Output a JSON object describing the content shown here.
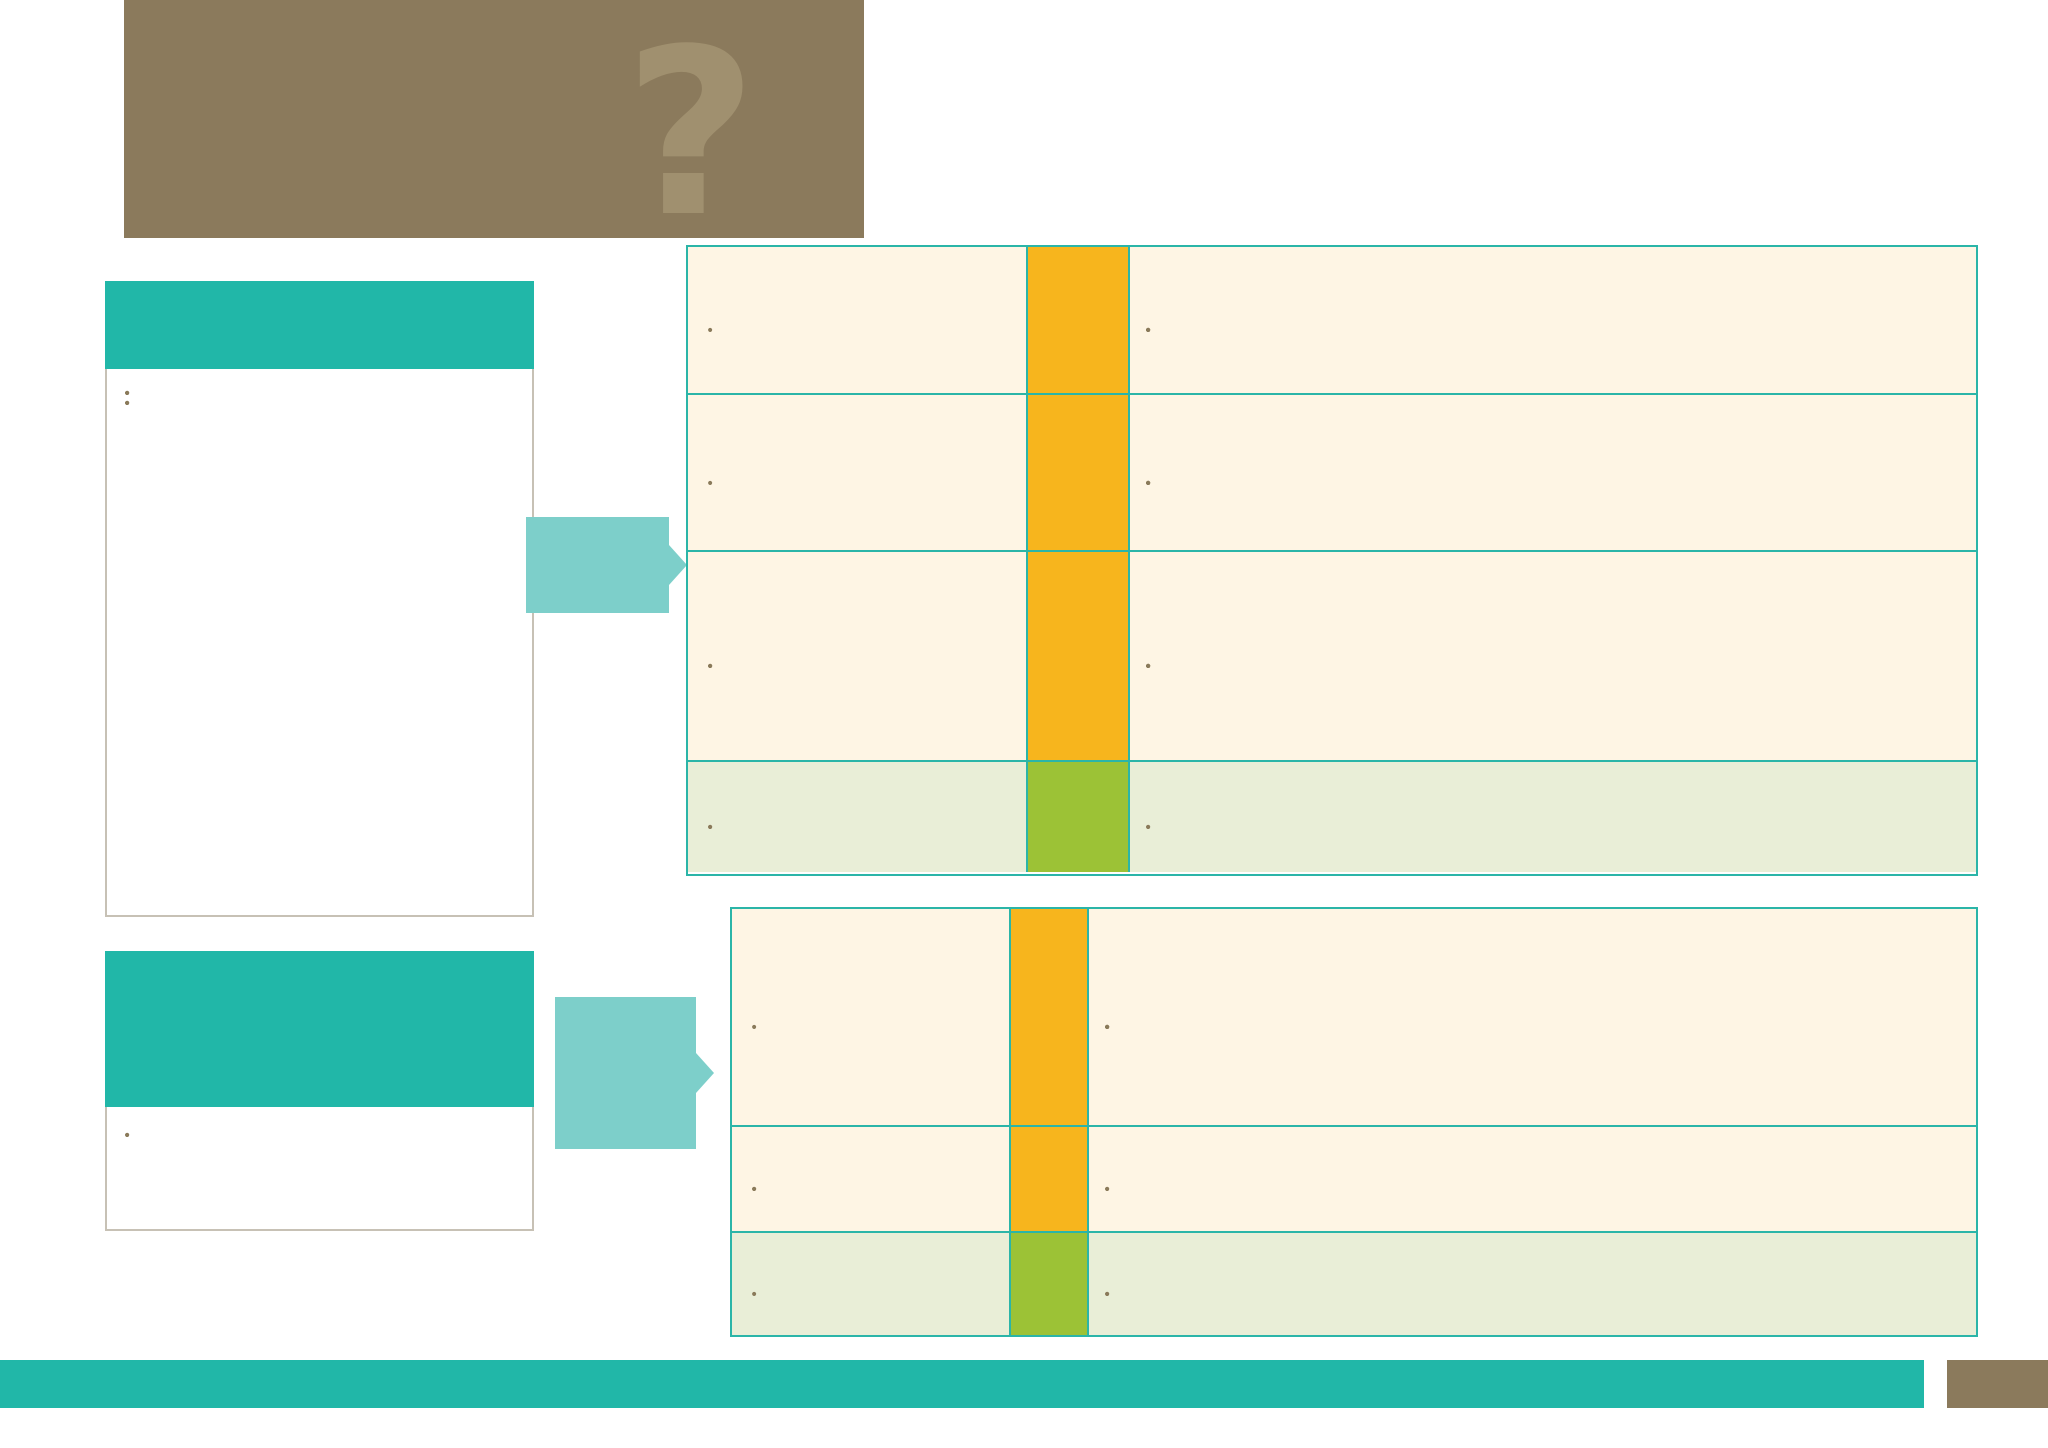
{
  "header": {
    "question": "",
    "question_mark": "?",
    "title_light": "",
    "title_bold": ""
  },
  "yes_box": {
    "heading": "",
    "questions": [
      "",
      "",
      ""
    ],
    "subheading": "",
    "items": [
      "",
      ""
    ],
    "retest": [
      "",
      "",
      "",
      ""
    ],
    "rapid": "",
    "note_bold": "",
    "note_rest": ""
  },
  "tags": {
    "classify_hiv": "",
    "classify_mother": ""
  },
  "table1": [
    {
      "signs": [
        ""
      ],
      "classification": "",
      "treatments": [
        "",
        "",
        "",
        "",
        ""
      ]
    },
    {
      "signs": [
        ""
      ],
      "classification": "",
      "treatments": [
        "",
        "",
        "",
        "",
        "",
        ""
      ]
    },
    {
      "signs": [
        "",
        "",
        ""
      ],
      "classification": "",
      "treatments": [
        "",
        "",
        "",
        "",
        "",
        ""
      ]
    },
    {
      "signs": [
        "",
        ""
      ],
      "classification": "",
      "treatments": [
        "",
        ""
      ]
    }
  ],
  "and_word": "",
  "or_word": "",
  "no_box": {
    "heading": "",
    "ask": "",
    "questions": [
      "",
      ""
    ]
  },
  "table2": [
    {
      "signs": [
        ""
      ],
      "classification": "",
      "treatments": [
        "",
        "",
        "",
        "",
        ""
      ],
      "sub_items": [
        "",
        ""
      ],
      "last": ""
    },
    {
      "signs": [
        "",
        ""
      ],
      "classification": "",
      "treatments": [
        "",
        ""
      ],
      "continuation": ""
    },
    {
      "signs": [
        ""
      ],
      "classification": "",
      "treatments": [
        "",
        ""
      ]
    }
  ],
  "footer": {
    "prefix": "",
    "bold": "",
    "suffix": "",
    "page_number": ""
  },
  "colors": {
    "teal": "#21b7a8",
    "brown": "#8b7a5c",
    "yellow": "#f7b51d",
    "green": "#9cc236",
    "cream": "#fef5e4",
    "pale_green": "#e9eed7"
  }
}
